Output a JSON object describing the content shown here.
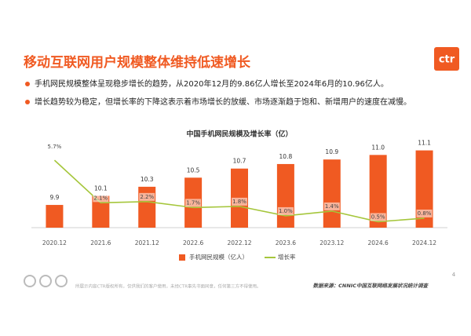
{
  "slide": {
    "title": "移动互联网用户规模整体维持低速增长",
    "logo": "ctr",
    "bullets": [
      "手机网民规模整体呈现稳步增长的趋势，从2020年12月的9.86亿人增长至2024年6月的10.96亿人。",
      "增长趋势较为稳定，但增长率的下降这表示着市场增长的放缓、市场逐渐趋于饱和、新增用户的速度在减慢。"
    ],
    "footer_note": "所展示内容CTR版权所有，仅供我们的客户使用，未经CTR事先书面同意，任何第三方不得使用。",
    "source": "数据来源：CNNIC中国互联网络发展状况统计调查",
    "page_number": 4
  },
  "chart_data": {
    "type": "combo",
    "title": "中国手机网民规模及增长率（亿）",
    "categories": [
      "2020.12",
      "2021.6",
      "2021.12",
      "2022.6",
      "2022.12",
      "2023.6",
      "2023.12",
      "2024.6",
      "2024.12"
    ],
    "series": [
      {
        "name": "手机网民规模（亿人）",
        "type": "bar",
        "color": "#f05a22",
        "values": [
          9.9,
          10.1,
          10.3,
          10.5,
          10.7,
          10.8,
          10.9,
          11.0,
          11.1
        ],
        "value_labels": [
          "9.9",
          "10.1",
          "10.3",
          "10.5",
          "10.7",
          "10.8",
          "10.9",
          "11.0",
          "11.1"
        ]
      },
      {
        "name": "增长率",
        "type": "line",
        "axis": "y2",
        "color": "#a5c63b",
        "values": [
          5.7,
          2.1,
          2.2,
          1.7,
          1.8,
          1.0,
          1.4,
          0.5,
          0.8
        ],
        "value_labels": [
          "5.7%",
          "2.1%",
          "2.2%",
          "1.7%",
          "1.8%",
          "1.0%",
          "1.4%",
          "0.5%",
          "0.8%"
        ]
      }
    ],
    "ylim": [
      9.4,
      11.3
    ],
    "y2lim": [
      0,
      7.3
    ],
    "legend": "bottom"
  }
}
